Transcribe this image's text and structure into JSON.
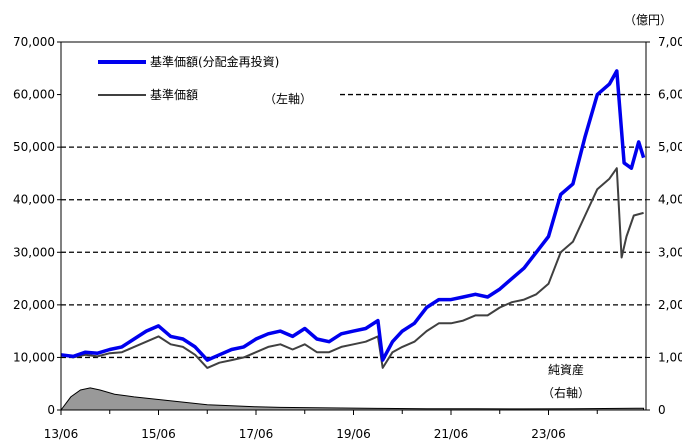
{
  "chart_data": {
    "type": "line",
    "unit_right": "（億円）",
    "x_tick_labels": [
      "13/06",
      "15/06",
      "17/06",
      "19/06",
      "21/06",
      "23/06"
    ],
    "left_axis": {
      "ylim": [
        0,
        70000
      ],
      "ticks": [
        0,
        10000,
        20000,
        30000,
        40000,
        50000,
        60000,
        70000
      ],
      "tick_labels": [
        "0",
        "10,000",
        "20,000",
        "30,000",
        "40,000",
        "50,000",
        "60,000",
        "70,000"
      ]
    },
    "right_axis": {
      "ylim": [
        0,
        7000
      ],
      "tick_labels": [
        "0",
        "1,00",
        "2,00",
        "3,00",
        "4,00",
        "5,00",
        "6,00",
        "7,00"
      ]
    },
    "legend": [
      {
        "name": "基準価額(分配金再投資)",
        "color": "#0000ee"
      },
      {
        "name": "基準価額",
        "color": "#404040"
      }
    ],
    "annotations": {
      "left_axis_note": "（左軸）",
      "net_assets": "純資産",
      "net_assets_axis": "（右軸）"
    },
    "series": [
      {
        "name": "基準価額(分配金再投資)",
        "axis": "left",
        "color": "#0000ee",
        "points": [
          [
            2013.5,
            10500
          ],
          [
            2013.75,
            10200
          ],
          [
            2014.0,
            11000
          ],
          [
            2014.25,
            10800
          ],
          [
            2014.5,
            11500
          ],
          [
            2014.75,
            12000
          ],
          [
            2015.0,
            13500
          ],
          [
            2015.25,
            15000
          ],
          [
            2015.5,
            16000
          ],
          [
            2015.75,
            14000
          ],
          [
            2016.0,
            13500
          ],
          [
            2016.25,
            12000
          ],
          [
            2016.5,
            9500
          ],
          [
            2016.75,
            10500
          ],
          [
            2017.0,
            11500
          ],
          [
            2017.25,
            12000
          ],
          [
            2017.5,
            13500
          ],
          [
            2017.75,
            14500
          ],
          [
            2018.0,
            15000
          ],
          [
            2018.25,
            14000
          ],
          [
            2018.5,
            15500
          ],
          [
            2018.75,
            13500
          ],
          [
            2019.0,
            13000
          ],
          [
            2019.25,
            14500
          ],
          [
            2019.5,
            15000
          ],
          [
            2019.75,
            15500
          ],
          [
            2020.0,
            17000
          ],
          [
            2020.1,
            9500
          ],
          [
            2020.3,
            13000
          ],
          [
            2020.5,
            15000
          ],
          [
            2020.75,
            16500
          ],
          [
            2021.0,
            19500
          ],
          [
            2021.25,
            21000
          ],
          [
            2021.5,
            21000
          ],
          [
            2021.75,
            21500
          ],
          [
            2022.0,
            22000
          ],
          [
            2022.25,
            21500
          ],
          [
            2022.5,
            23000
          ],
          [
            2022.75,
            25000
          ],
          [
            2023.0,
            27000
          ],
          [
            2023.25,
            30000
          ],
          [
            2023.5,
            33000
          ],
          [
            2023.75,
            41000
          ],
          [
            2024.0,
            43000
          ],
          [
            2024.25,
            52000
          ],
          [
            2024.5,
            60000
          ],
          [
            2024.75,
            62000
          ],
          [
            2024.9,
            64500
          ],
          [
            2025.05,
            47000
          ],
          [
            2025.2,
            46000
          ],
          [
            2025.35,
            51000
          ],
          [
            2025.45,
            48000
          ]
        ]
      },
      {
        "name": "基準価額",
        "axis": "left",
        "color": "#404040",
        "points": [
          [
            2013.5,
            10500
          ],
          [
            2013.75,
            10000
          ],
          [
            2014.0,
            10500
          ],
          [
            2014.25,
            10200
          ],
          [
            2014.5,
            10800
          ],
          [
            2014.75,
            11000
          ],
          [
            2015.0,
            12000
          ],
          [
            2015.25,
            13000
          ],
          [
            2015.5,
            14000
          ],
          [
            2015.75,
            12500
          ],
          [
            2016.0,
            12000
          ],
          [
            2016.25,
            10500
          ],
          [
            2016.5,
            8000
          ],
          [
            2016.75,
            9000
          ],
          [
            2017.0,
            9500
          ],
          [
            2017.25,
            10000
          ],
          [
            2017.5,
            11000
          ],
          [
            2017.75,
            12000
          ],
          [
            2018.0,
            12500
          ],
          [
            2018.25,
            11500
          ],
          [
            2018.5,
            12500
          ],
          [
            2018.75,
            11000
          ],
          [
            2019.0,
            11000
          ],
          [
            2019.25,
            12000
          ],
          [
            2019.5,
            12500
          ],
          [
            2019.75,
            13000
          ],
          [
            2020.0,
            14000
          ],
          [
            2020.1,
            8000
          ],
          [
            2020.3,
            11000
          ],
          [
            2020.5,
            12000
          ],
          [
            2020.75,
            13000
          ],
          [
            2021.0,
            15000
          ],
          [
            2021.25,
            16500
          ],
          [
            2021.5,
            16500
          ],
          [
            2021.75,
            17000
          ],
          [
            2022.0,
            18000
          ],
          [
            2022.25,
            18000
          ],
          [
            2022.5,
            19500
          ],
          [
            2022.75,
            20500
          ],
          [
            2023.0,
            21000
          ],
          [
            2023.25,
            22000
          ],
          [
            2023.5,
            24000
          ],
          [
            2023.75,
            30000
          ],
          [
            2024.0,
            32000
          ],
          [
            2024.25,
            37000
          ],
          [
            2024.5,
            42000
          ],
          [
            2024.75,
            44000
          ],
          [
            2024.9,
            46000
          ],
          [
            2025.0,
            29000
          ],
          [
            2025.1,
            33000
          ],
          [
            2025.25,
            37000
          ],
          [
            2025.45,
            37500
          ]
        ]
      },
      {
        "name": "純資産",
        "axis": "right",
        "type": "area",
        "color": "#999999",
        "points": [
          [
            2013.5,
            0
          ],
          [
            2013.7,
            250
          ],
          [
            2013.9,
            380
          ],
          [
            2014.1,
            420
          ],
          [
            2014.3,
            380
          ],
          [
            2014.6,
            300
          ],
          [
            2015.0,
            250
          ],
          [
            2015.5,
            200
          ],
          [
            2016.0,
            150
          ],
          [
            2016.5,
            100
          ],
          [
            2017.0,
            80
          ],
          [
            2017.5,
            60
          ],
          [
            2018.0,
            50
          ],
          [
            2019.0,
            40
          ],
          [
            2020.0,
            30
          ],
          [
            2021.0,
            25
          ],
          [
            2022.0,
            22
          ],
          [
            2023.0,
            20
          ],
          [
            2024.0,
            25
          ],
          [
            2025.45,
            35
          ]
        ]
      }
    ]
  }
}
